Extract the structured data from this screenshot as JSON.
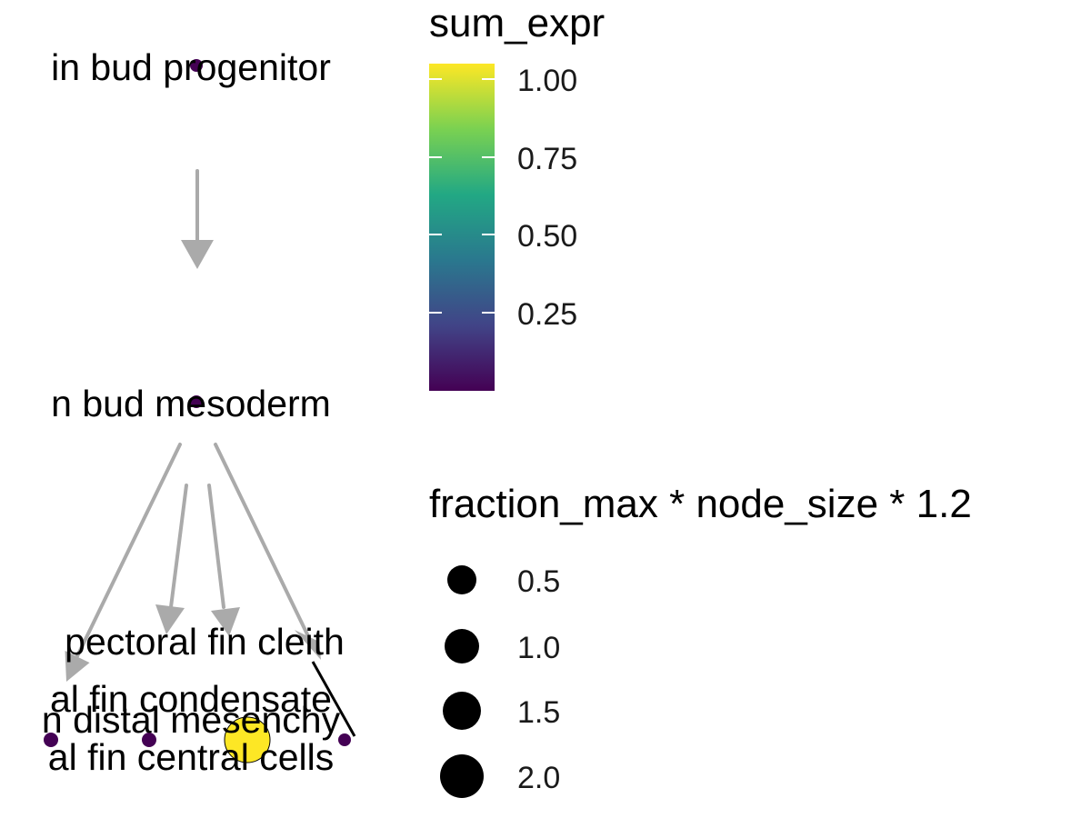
{
  "graph": {
    "nodes": [
      {
        "id": "n1",
        "label": "in bud progenitor",
        "value": 0.0,
        "size": 0.5
      },
      {
        "id": "n2",
        "label": "n bud mesoderm",
        "value": 0.0,
        "size": 0.5
      },
      {
        "id": "n3",
        "label": "al fin condensate",
        "value": 0.0,
        "size": 0.5
      },
      {
        "id": "n4",
        "label": "n distal mesenchy",
        "value": 0.0,
        "size": 0.5
      },
      {
        "id": "n5",
        "label": "al fin central cells",
        "value": 1.0,
        "size": 2.0
      },
      {
        "id": "n6",
        "label": "pectoral fin cleith",
        "value": 0.0,
        "size": 0.5
      }
    ],
    "edges": [
      {
        "from": "n1",
        "to": "n2"
      },
      {
        "from": "n2",
        "to": "n3"
      },
      {
        "from": "n2",
        "to": "n4"
      },
      {
        "from": "n2",
        "to": "n5"
      },
      {
        "from": "n2",
        "to": "n6"
      }
    ],
    "edge_color": "#aaaaaa"
  },
  "legend": {
    "color_title": "sum_expr",
    "color_ticks": [
      "1.00",
      "0.75",
      "0.50",
      "0.25"
    ],
    "color_stops": [
      "#fde725",
      "#7ad151",
      "#22a884",
      "#2a788e",
      "#414487",
      "#440154"
    ],
    "size_title": "fraction_max * node_size * 1.2",
    "size_entries": [
      "0.5",
      "1.0",
      "1.5",
      "2.0"
    ]
  }
}
